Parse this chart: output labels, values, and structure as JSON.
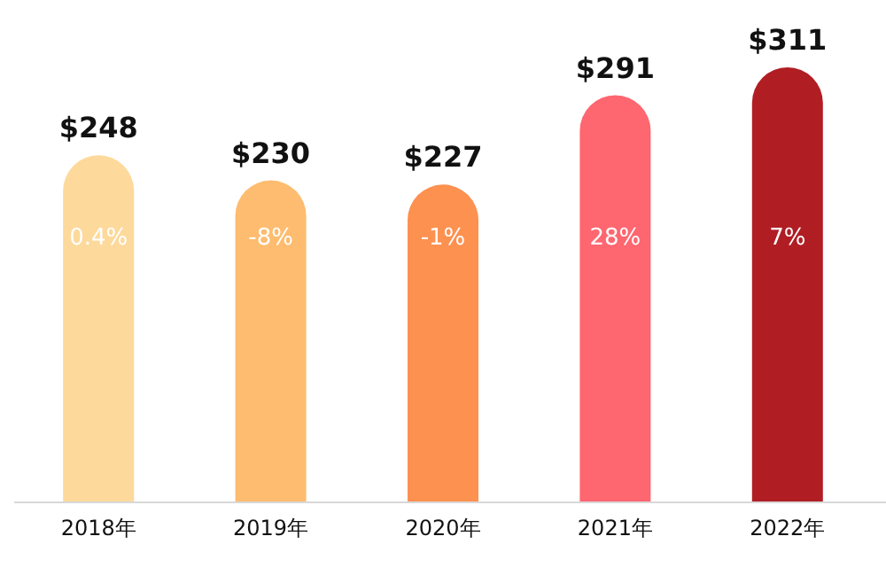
{
  "chart_data": {
    "type": "bar",
    "categories": [
      "2018年",
      "2019年",
      "2020年",
      "2021年",
      "2022年"
    ],
    "values": [
      248,
      230,
      227,
      291,
      311
    ],
    "value_labels": [
      "$248",
      "$230",
      "$227",
      "$291",
      "$311"
    ],
    "colors": [
      "#fdd99b",
      "#fdbc6f",
      "#fd9150",
      "#fe6670",
      "#b01e24"
    ],
    "annotations": [
      "0.4%",
      "-8%",
      "-1%",
      "28%",
      "7%"
    ]
  }
}
